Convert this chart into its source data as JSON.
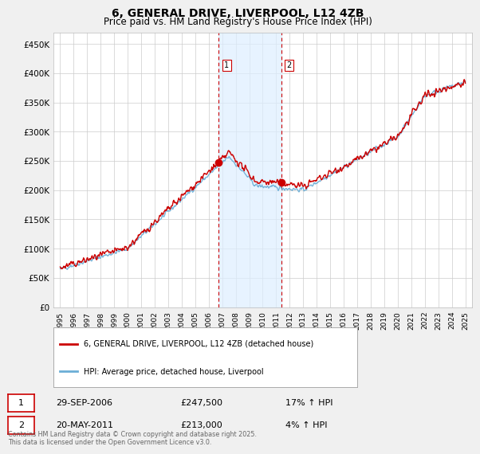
{
  "title": "6, GENERAL DRIVE, LIVERPOOL, L12 4ZB",
  "subtitle": "Price paid vs. HM Land Registry's House Price Index (HPI)",
  "ylim": [
    0,
    470000
  ],
  "yticks": [
    0,
    50000,
    100000,
    150000,
    200000,
    250000,
    300000,
    350000,
    400000,
    450000
  ],
  "ytick_labels": [
    "£0",
    "£50K",
    "£100K",
    "£150K",
    "£200K",
    "£250K",
    "£300K",
    "£350K",
    "£400K",
    "£450K"
  ],
  "sale1_date": 2006.75,
  "sale1_price": 247500,
  "sale2_date": 2011.38,
  "sale2_price": 213000,
  "hpi_line_color": "#6baed6",
  "price_line_color": "#cc0000",
  "shade_color": "#ddeeff",
  "vline_color": "#cc0000",
  "background_color": "#f0f0f0",
  "plot_bg_color": "#ffffff",
  "legend_label_price": "6, GENERAL DRIVE, LIVERPOOL, L12 4ZB (detached house)",
  "legend_label_hpi": "HPI: Average price, detached house, Liverpool",
  "footer": "Contains HM Land Registry data © Crown copyright and database right 2025.\nThis data is licensed under the Open Government Licence v3.0.",
  "table_rows": [
    {
      "num": "1",
      "date": "29-SEP-2006",
      "price": "£247,500",
      "hpi": "17% ↑ HPI"
    },
    {
      "num": "2",
      "date": "20-MAY-2011",
      "price": "£213,000",
      "hpi": "4% ↑ HPI"
    }
  ],
  "xmin": 1994.5,
  "xmax": 2025.5,
  "xtick_start": 1995,
  "xtick_end": 2025
}
